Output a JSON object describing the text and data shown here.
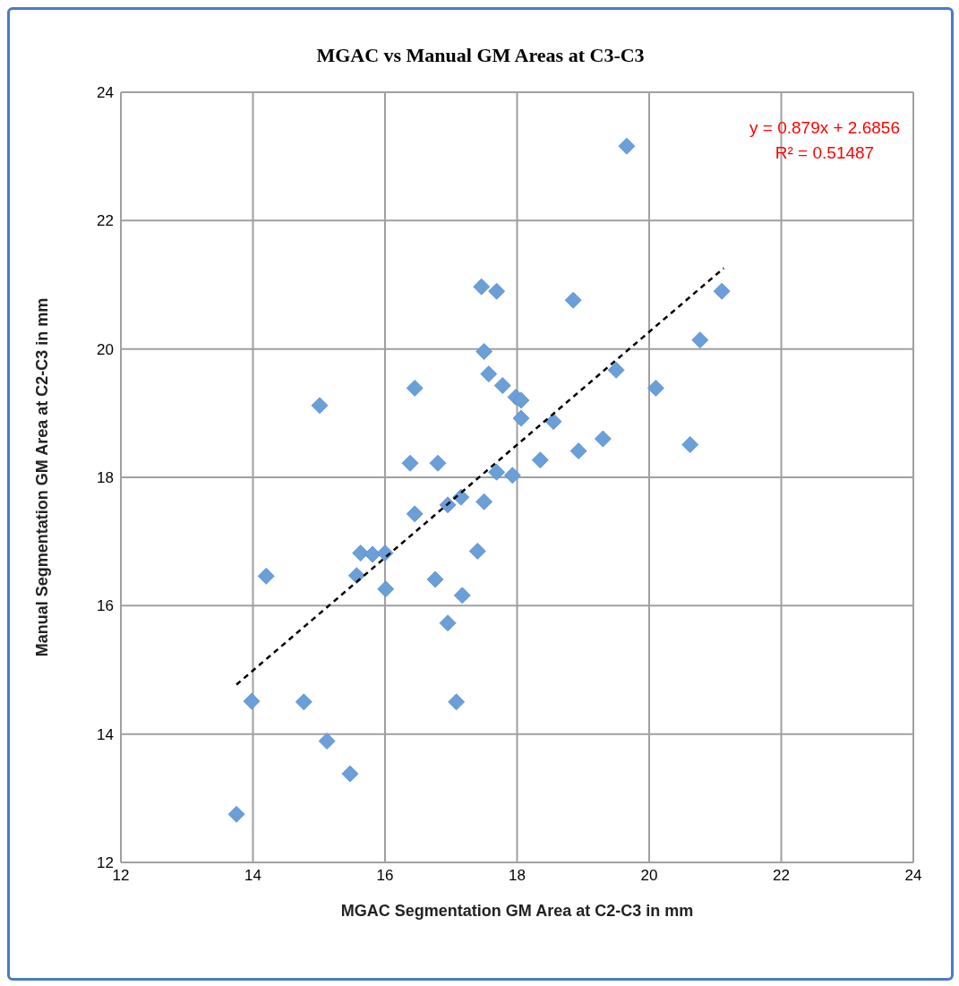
{
  "chart_data": {
    "type": "scatter",
    "title": "MGAC vs Manual GM Areas at C3-C3",
    "xlabel": "MGAC Segmentation GM Area at C2-C3 in mm",
    "ylabel": "Manual Segmentation GM Area at C2-C3 in mm",
    "xlim": [
      12,
      24
    ],
    "xticks": [
      12,
      14,
      16,
      18,
      20,
      22,
      24
    ],
    "ylim": [
      12,
      24
    ],
    "yticks": [
      12,
      14,
      16,
      18,
      20,
      22,
      24
    ],
    "grid": true,
    "legend": false,
    "series": [
      {
        "color": "#6a9fd8",
        "marker": "diamond",
        "x": [
          13.75,
          13.98,
          14.2,
          14.77,
          15.01,
          15.12,
          15.47,
          15.57,
          15.63,
          15.81,
          16.0,
          16.01,
          16.38,
          16.45,
          16.45,
          16.76,
          16.8,
          16.95,
          16.95,
          17.08,
          17.15,
          17.17,
          17.4,
          17.46,
          17.5,
          17.5,
          17.57,
          17.69,
          17.69,
          17.78,
          17.93,
          17.98,
          18.06,
          18.06,
          18.35,
          18.55,
          18.85,
          18.93,
          19.3,
          19.5,
          19.66,
          20.1,
          20.62,
          20.77,
          21.1
        ],
        "values": [
          12.75,
          14.51,
          16.46,
          14.5,
          19.12,
          13.89,
          13.38,
          16.47,
          16.82,
          16.8,
          16.82,
          16.26,
          18.22,
          19.39,
          17.43,
          16.41,
          18.22,
          17.57,
          15.73,
          14.5,
          17.69,
          16.16,
          16.85,
          20.97,
          19.96,
          17.62,
          19.61,
          20.9,
          18.08,
          19.43,
          18.03,
          19.25,
          19.2,
          18.92,
          18.27,
          18.87,
          20.76,
          18.41,
          18.6,
          19.67,
          23.16,
          19.39,
          18.51,
          20.14,
          20.9
        ]
      },
      {
        "type": "line",
        "color": "#000000",
        "marker": "none",
        "line_style": "dashed",
        "x": [
          13.75,
          21.13
        ],
        "values": [
          14.77,
          21.26
        ]
      }
    ],
    "annotations": [
      "y = 0.879x + 2.6856",
      "R² = 0.51487"
    ]
  }
}
